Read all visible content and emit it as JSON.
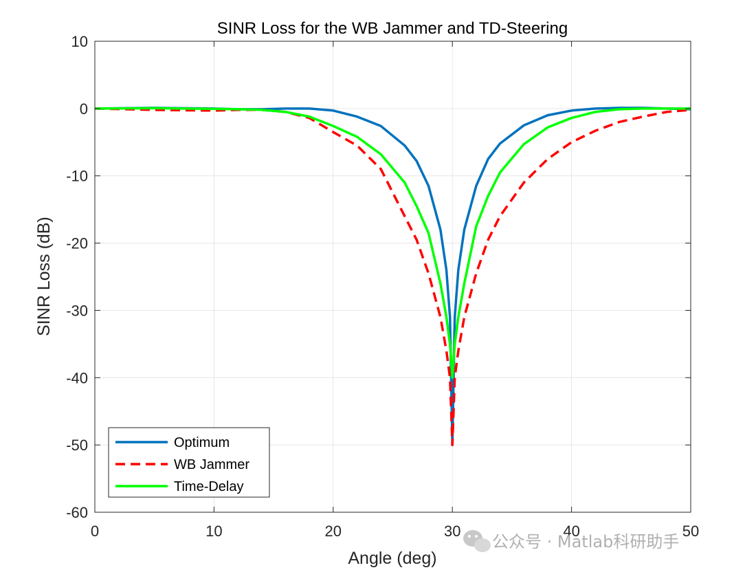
{
  "chart_data": {
    "type": "line",
    "title": "SINR Loss for the WB Jammer and TD-Steering",
    "xlabel": "Angle (deg)",
    "ylabel": "SINR Loss (dB)",
    "xlim": [
      0,
      50
    ],
    "ylim": [
      -60,
      10
    ],
    "xticks": [
      0,
      10,
      20,
      30,
      40,
      50
    ],
    "yticks": [
      10,
      0,
      -10,
      -20,
      -30,
      -40,
      -50,
      -60
    ],
    "xtick_labels": [
      "0",
      "10",
      "20",
      "30",
      "40",
      "50"
    ],
    "ytick_labels": [
      "10",
      "0",
      "-10",
      "-20",
      "-30",
      "-40",
      "-50",
      "-60"
    ],
    "grid": true,
    "legend_position": "bottom-left",
    "x": [
      0,
      5,
      10,
      12,
      14,
      16,
      18,
      20,
      22,
      24,
      26,
      27,
      28,
      29,
      29.5,
      29.8,
      30,
      30.2,
      30.5,
      31,
      32,
      33,
      34,
      36,
      38,
      40,
      42,
      44,
      46,
      48,
      50
    ],
    "series": [
      {
        "name": "Optimum",
        "color": "#0072BD",
        "dash": "solid",
        "values": [
          0,
          0.1,
          0,
          -0.1,
          -0.1,
          0,
          0,
          -0.3,
          -1.2,
          -2.6,
          -5.5,
          -7.8,
          -11.5,
          -18,
          -24,
          -31,
          -50,
          -31,
          -24,
          -18,
          -11.5,
          -7.5,
          -5.2,
          -2.5,
          -1.0,
          -0.3,
          0,
          0.1,
          0.1,
          0,
          -0.1
        ]
      },
      {
        "name": "WB Jammer",
        "color": "#FF0000",
        "dash": "dashed",
        "values": [
          0,
          -0.2,
          -0.3,
          -0.2,
          -0.2,
          -0.5,
          -1.4,
          -3.5,
          -5.5,
          -9,
          -16,
          -19.5,
          -24.5,
          -31,
          -36,
          -40,
          -50,
          -40,
          -36,
          -31,
          -24.5,
          -19.5,
          -16,
          -11,
          -7.5,
          -5,
          -3.3,
          -2,
          -1.2,
          -0.5,
          -0.2
        ]
      },
      {
        "name": "Time-Delay",
        "color": "#00FF00",
        "dash": "solid",
        "values": [
          0,
          0.05,
          -0.05,
          -0.1,
          -0.2,
          -0.5,
          -1.2,
          -2.6,
          -4.2,
          -6.8,
          -11,
          -14.5,
          -18.5,
          -26,
          -31,
          -35,
          -40,
          -35,
          -31,
          -26,
          -17.5,
          -13,
          -9.5,
          -5.3,
          -2.8,
          -1.4,
          -0.5,
          -0.1,
          0,
          0,
          0
        ]
      }
    ]
  },
  "watermark": {
    "text": "公众号 · Matlab科研助手",
    "icon": "wechat-icon"
  }
}
